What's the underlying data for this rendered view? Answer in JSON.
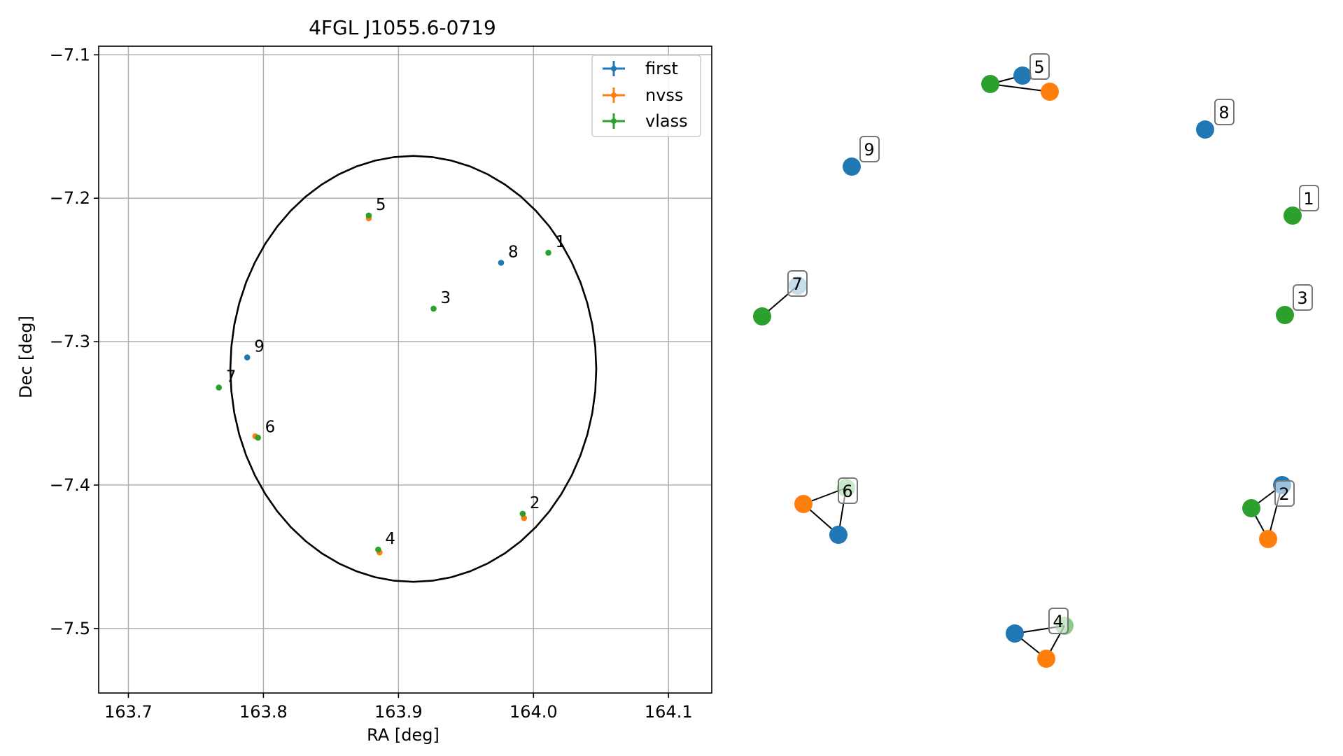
{
  "chart_data": [
    {
      "type": "scatter",
      "title": "4FGL J1055.6-0719",
      "xlabel": "RA [deg]",
      "ylabel": "Dec [deg]",
      "xlim": [
        163.678,
        164.132
      ],
      "ylim": [
        -7.545,
        -7.094
      ],
      "xticks": [
        163.7,
        163.8,
        163.9,
        164.0,
        164.1
      ],
      "xtick_labels": [
        "163.7",
        "163.8",
        "163.9",
        "164.0",
        "164.1"
      ],
      "yticks": [
        -7.1,
        -7.2,
        -7.3,
        -7.4,
        -7.5
      ],
      "ytick_labels": [
        "−7.1",
        "−7.2",
        "−7.3",
        "−7.4",
        "−7.5"
      ],
      "grid": true,
      "legend_position": "top-right",
      "ellipse": {
        "center": [
          163.911,
          -7.319
        ],
        "semi_axis_ra": 0.1355,
        "semi_axis_dec": 0.1485
      },
      "series": [
        {
          "name": "first",
          "color": "#1f77b4",
          "points": [
            {
              "x": 163.976,
              "y": -7.245,
              "label": "8"
            },
            {
              "x": 163.788,
              "y": -7.311,
              "label": "9"
            }
          ]
        },
        {
          "name": "nvss",
          "color": "#ff7f0e",
          "points": [
            {
              "x": 163.878,
              "y": -7.214
            },
            {
              "x": 163.794,
              "y": -7.366
            },
            {
              "x": 163.886,
              "y": -7.447
            },
            {
              "x": 163.993,
              "y": -7.423
            }
          ]
        },
        {
          "name": "vlass",
          "color": "#2ca02c",
          "points": [
            {
              "x": 163.878,
              "y": -7.212,
              "label": "5"
            },
            {
              "x": 164.011,
              "y": -7.238,
              "label": "1"
            },
            {
              "x": 163.926,
              "y": -7.277,
              "label": "3"
            },
            {
              "x": 163.767,
              "y": -7.332,
              "label": "7"
            },
            {
              "x": 163.796,
              "y": -7.367,
              "label": "6"
            },
            {
              "x": 163.885,
              "y": -7.445,
              "label": "4"
            },
            {
              "x": 163.992,
              "y": -7.42,
              "label": "2"
            }
          ]
        }
      ]
    },
    {
      "type": "network",
      "colors": {
        "first": "#1f77b4",
        "nvss": "#ff7f0e",
        "vlass": "#2ca02c"
      },
      "groups": [
        {
          "label": "5",
          "nodes": [
            "vlass",
            "first",
            "nvss"
          ],
          "edges": [
            [
              0,
              1
            ],
            [
              0,
              2
            ]
          ]
        },
        {
          "label": "8",
          "nodes": [
            "first"
          ],
          "edges": []
        },
        {
          "label": "9",
          "nodes": [
            "first"
          ],
          "edges": []
        },
        {
          "label": "1",
          "nodes": [
            "vlass"
          ],
          "edges": []
        },
        {
          "label": "7",
          "nodes": [
            "vlass",
            "first"
          ],
          "edges": [
            [
              0,
              1
            ]
          ]
        },
        {
          "label": "3",
          "nodes": [
            "vlass"
          ],
          "edges": []
        },
        {
          "label": "6",
          "nodes": [
            "nvss",
            "vlass",
            "first"
          ],
          "edges": [
            [
              0,
              1
            ],
            [
              0,
              2
            ],
            [
              1,
              2
            ]
          ]
        },
        {
          "label": "2",
          "nodes": [
            "vlass",
            "first",
            "nvss"
          ],
          "edges": [
            [
              0,
              1
            ],
            [
              0,
              2
            ],
            [
              1,
              2
            ]
          ]
        },
        {
          "label": "4",
          "nodes": [
            "first",
            "vlass",
            "nvss"
          ],
          "edges": [
            [
              0,
              1
            ],
            [
              0,
              2
            ],
            [
              1,
              2
            ]
          ]
        }
      ]
    }
  ]
}
